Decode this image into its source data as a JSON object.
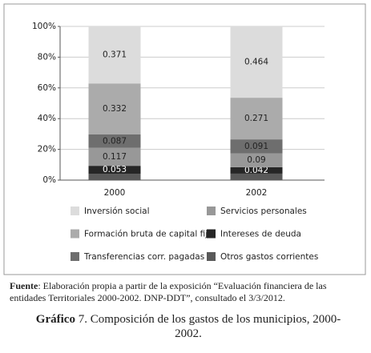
{
  "chart_data": {
    "type": "stacked_bar",
    "categories": [
      "2000",
      "2002"
    ],
    "ylim": [
      0,
      100
    ],
    "yticks": [
      {
        "value": 0,
        "label": "0%"
      },
      {
        "value": 20,
        "label": "20%"
      },
      {
        "value": 40,
        "label": "40%"
      },
      {
        "value": 60,
        "label": "60%"
      },
      {
        "value": 80,
        "label": "80%"
      },
      {
        "value": 100,
        "label": "100%"
      }
    ],
    "grid": true,
    "series": [
      {
        "name": "Inversión social",
        "color": "#dcdcdc",
        "values": [
          37.1,
          46.4
        ],
        "value_labels": [
          "0.371",
          "0.464"
        ]
      },
      {
        "name": "Servicios personales",
        "color": "#989898",
        "values": [
          11.7,
          9.0
        ],
        "value_labels": [
          "0.117",
          "0.09"
        ]
      },
      {
        "name": "Formación bruta de capital fijo",
        "color": "#ababab",
        "values": [
          33.2,
          27.1
        ],
        "value_labels": [
          "0.332",
          "0.271"
        ]
      },
      {
        "name": "Intereses de deuda",
        "color": "#262626",
        "values": [
          5.3,
          4.2
        ],
        "value_labels": [
          "0.053",
          "0.042"
        ]
      },
      {
        "name": "Transferencias corr. pagadas",
        "color": "#6e6e6e",
        "values": [
          8.7,
          9.1
        ],
        "value_labels": [
          "0.087",
          "0.091"
        ]
      },
      {
        "name": "Otros gastos corrientes",
        "color": "#595959",
        "values": [
          4.0,
          4.2
        ]
      }
    ]
  },
  "caption": {
    "source_label": "Fuente",
    "source_text": ": Elaboración propia a partir de la exposición “Evaluación financiera de las entidades Territoriales 2000-2002. DNP-DDT”, consultado el 3/3/2012.",
    "figure_label": "Gráfico",
    "figure_text": " 7. Composición de los gastos de los municipios, 2000-2002."
  }
}
